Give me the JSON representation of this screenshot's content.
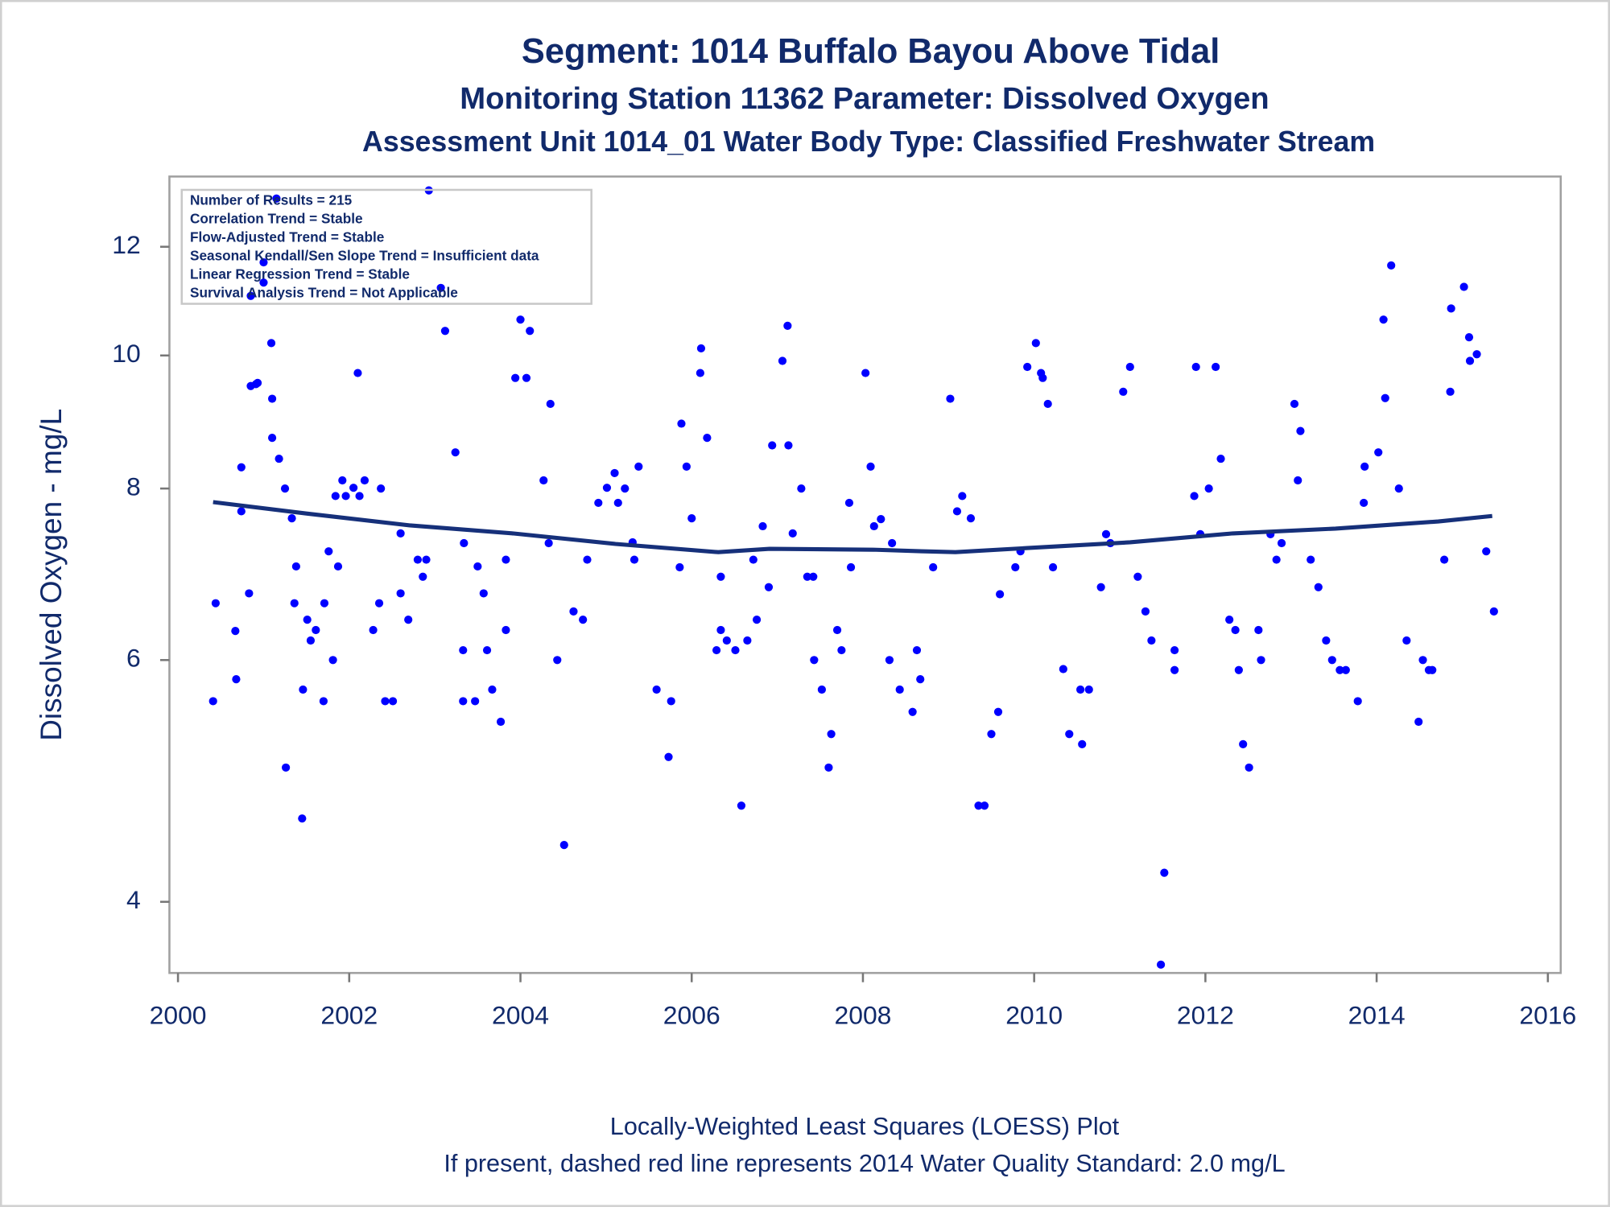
{
  "chart_data": {
    "type": "scatter",
    "title": "Segment: 1014  Buffalo Bayou Above Tidal",
    "subtitle": "Monitoring Station 11362 Parameter: Dissolved Oxygen",
    "subtitle2": "Assessment Unit 1014_01   Water Body Type: Classified Freshwater Stream",
    "y_label": "Dissolved Oxygen - mg/L",
    "annotations": [
      "Number of Results = 215",
      "Correlation Trend = Stable",
      "Flow-Adjusted Trend = Stable",
      "Seasonal Kendall/Sen Slope Trend = Insufficient data",
      "Linear Regression Trend = Stable",
      "Survival Analysis Trend = Not Applicable"
    ],
    "footnotes": [
      "Locally-Weighted Least Squares (LOESS) Plot",
      "If present, dashed red line represents 2014 Water Quality Standard: 2.0 mg/L"
    ],
    "xlim": [
      1999.9,
      2016.15
    ],
    "xticks": [
      2000,
      2002,
      2004,
      2006,
      2008,
      2010,
      2012,
      2014,
      2016
    ],
    "ylim": [
      3.55,
      13.5
    ],
    "yticks": [
      4,
      6,
      8,
      10,
      12
    ],
    "log_y": true,
    "grid": false,
    "series": [
      {
        "type": "scatter",
        "color": "#0000ff",
        "x": [
          2000.41,
          2000.44,
          2000.67,
          2000.68,
          2000.74,
          2000.74,
          2000.83,
          2000.85,
          2000.85,
          2000.91,
          2000.93,
          2001.0,
          2001.0,
          2001.09,
          2001.1,
          2001.1,
          2001.18,
          2001.15,
          2001.25,
          2001.26,
          2001.33,
          2001.38,
          2001.36,
          2001.46,
          2001.45,
          2001.51,
          2001.55,
          2001.61,
          2001.7,
          2001.71,
          2001.76,
          2001.81,
          2001.84,
          2001.87,
          2001.92,
          2001.96,
          2002.05,
          2002.1,
          2002.12,
          2002.18,
          2002.28,
          2002.35,
          2002.37,
          2002.42,
          2002.51,
          2002.6,
          2002.6,
          2002.69,
          2002.8,
          2002.86,
          2002.9,
          2002.93,
          2003.07,
          2003.12,
          2003.24,
          2003.33,
          2003.33,
          2003.34,
          2003.47,
          2003.5,
          2003.57,
          2003.61,
          2003.67,
          2003.77,
          2003.83,
          2003.83,
          2003.94,
          2004.0,
          2004.07,
          2004.11,
          2004.27,
          2004.33,
          2004.35,
          2004.43,
          2004.51,
          2004.62,
          2004.73,
          2004.78,
          2004.91,
          2005.01,
          2005.1,
          2005.14,
          2005.22,
          2005.31,
          2005.33,
          2005.38,
          2005.59,
          2005.73,
          2005.76,
          2005.86,
          2005.88,
          2005.94,
          2006.0,
          2006.1,
          2006.11,
          2006.18,
          2006.29,
          2006.34,
          2006.34,
          2006.41,
          2006.51,
          2006.58,
          2006.65,
          2006.72,
          2006.76,
          2006.83,
          2006.9,
          2006.94,
          2007.06,
          2007.12,
          2007.13,
          2007.18,
          2007.28,
          2007.35,
          2007.42,
          2007.43,
          2007.52,
          2007.6,
          2007.63,
          2007.7,
          2007.75,
          2007.84,
          2007.86,
          2008.03,
          2008.09,
          2008.13,
          2008.21,
          2008.31,
          2008.34,
          2008.43,
          2008.58,
          2008.63,
          2008.67,
          2008.82,
          2009.02,
          2009.1,
          2009.16,
          2009.26,
          2009.35,
          2009.42,
          2009.5,
          2009.58,
          2009.6,
          2009.78,
          2009.84,
          2009.92,
          2010.02,
          2010.08,
          2010.1,
          2010.16,
          2010.22,
          2010.34,
          2010.41,
          2010.54,
          2010.56,
          2010.64,
          2010.78,
          2010.84,
          2010.89,
          2011.04,
          2011.12,
          2011.21,
          2011.3,
          2011.37,
          2011.48,
          2011.52,
          2011.64,
          2011.64,
          2011.87,
          2011.89,
          2011.94,
          2012.04,
          2012.12,
          2012.18,
          2012.28,
          2012.35,
          2012.39,
          2012.44,
          2012.51,
          2012.62,
          2012.65,
          2012.76,
          2012.83,
          2012.89,
          2013.04,
          2013.08,
          2013.11,
          2013.23,
          2013.32,
          2013.41,
          2013.48,
          2013.57,
          2013.64,
          2013.78,
          2013.85,
          2013.86,
          2014.02,
          2014.08,
          2014.1,
          2014.17,
          2014.26,
          2014.35,
          2014.49,
          2014.54,
          2014.61,
          2014.65,
          2014.79,
          2014.86,
          2014.87,
          2015.02,
          2015.08,
          2015.09,
          2015.17,
          2015.28,
          2015.37
        ],
        "values": [
          5.6,
          6.6,
          6.3,
          5.81,
          8.29,
          7.7,
          6.71,
          11.05,
          9.5,
          9.53,
          9.55,
          11.69,
          11.3,
          10.21,
          9.3,
          8.71,
          8.41,
          13.01,
          8.0,
          5.01,
          7.61,
          7.02,
          6.6,
          5.71,
          4.6,
          6.42,
          6.2,
          6.31,
          5.6,
          6.6,
          7.2,
          6.0,
          7.9,
          7.02,
          8.11,
          7.9,
          8.01,
          9.71,
          7.9,
          8.11,
          6.31,
          6.6,
          8.0,
          5.6,
          5.6,
          7.42,
          6.71,
          6.42,
          7.1,
          6.9,
          7.1,
          13.19,
          11.2,
          10.42,
          8.5,
          6.1,
          5.6,
          7.3,
          5.6,
          7.02,
          6.71,
          6.1,
          5.71,
          5.41,
          7.1,
          6.31,
          9.63,
          10.62,
          9.63,
          10.42,
          8.11,
          7.3,
          9.22,
          6.0,
          4.4,
          6.51,
          6.42,
          7.1,
          7.81,
          8.01,
          8.21,
          7.81,
          8.0,
          7.31,
          7.1,
          8.3,
          5.71,
          5.1,
          5.6,
          7.01,
          8.92,
          8.3,
          7.61,
          9.71,
          10.12,
          8.71,
          6.1,
          6.9,
          6.31,
          6.2,
          6.1,
          4.7,
          6.2,
          7.1,
          6.42,
          7.51,
          6.78,
          8.6,
          9.91,
          10.51,
          8.6,
          7.42,
          8.0,
          6.9,
          6.9,
          6.0,
          5.71,
          5.01,
          5.3,
          6.31,
          6.1,
          7.81,
          7.01,
          9.71,
          8.3,
          7.51,
          7.6,
          6.0,
          7.3,
          5.71,
          5.5,
          6.1,
          5.81,
          7.01,
          9.3,
          7.7,
          7.9,
          7.61,
          4.7,
          4.7,
          5.3,
          5.5,
          6.7,
          7.01,
          7.2,
          9.81,
          10.21,
          9.71,
          9.63,
          9.22,
          7.01,
          5.91,
          5.3,
          5.71,
          5.21,
          5.71,
          6.78,
          7.41,
          7.3,
          9.41,
          9.81,
          6.9,
          6.51,
          6.2,
          3.6,
          4.2,
          6.1,
          5.9,
          7.9,
          9.81,
          7.41,
          8.0,
          9.81,
          8.41,
          6.42,
          6.31,
          5.9,
          5.21,
          5.01,
          6.31,
          6.0,
          7.41,
          7.1,
          7.3,
          9.22,
          8.11,
          8.81,
          7.1,
          6.78,
          6.2,
          6.0,
          5.9,
          5.9,
          5.6,
          7.81,
          8.3,
          8.5,
          10.62,
          9.31,
          11.63,
          8.0,
          6.2,
          5.41,
          6.0,
          5.9,
          5.9,
          7.1,
          9.41,
          10.82,
          11.22,
          10.31,
          9.91,
          10.02,
          7.2,
          6.51
        ]
      },
      {
        "type": "line",
        "color": "#16307a",
        "x": [
          2000.41,
          2001.51,
          2002.71,
          2003.91,
          2005.11,
          2006.31,
          2006.91,
          2008.12,
          2008.72,
          2009.08,
          2009.92,
          2011.12,
          2012.32,
          2013.52,
          2014.72,
          2015.35
        ],
        "values": [
          7.82,
          7.67,
          7.52,
          7.42,
          7.29,
          7.19,
          7.23,
          7.22,
          7.2,
          7.19,
          7.24,
          7.31,
          7.42,
          7.48,
          7.57,
          7.64
        ]
      }
    ]
  }
}
